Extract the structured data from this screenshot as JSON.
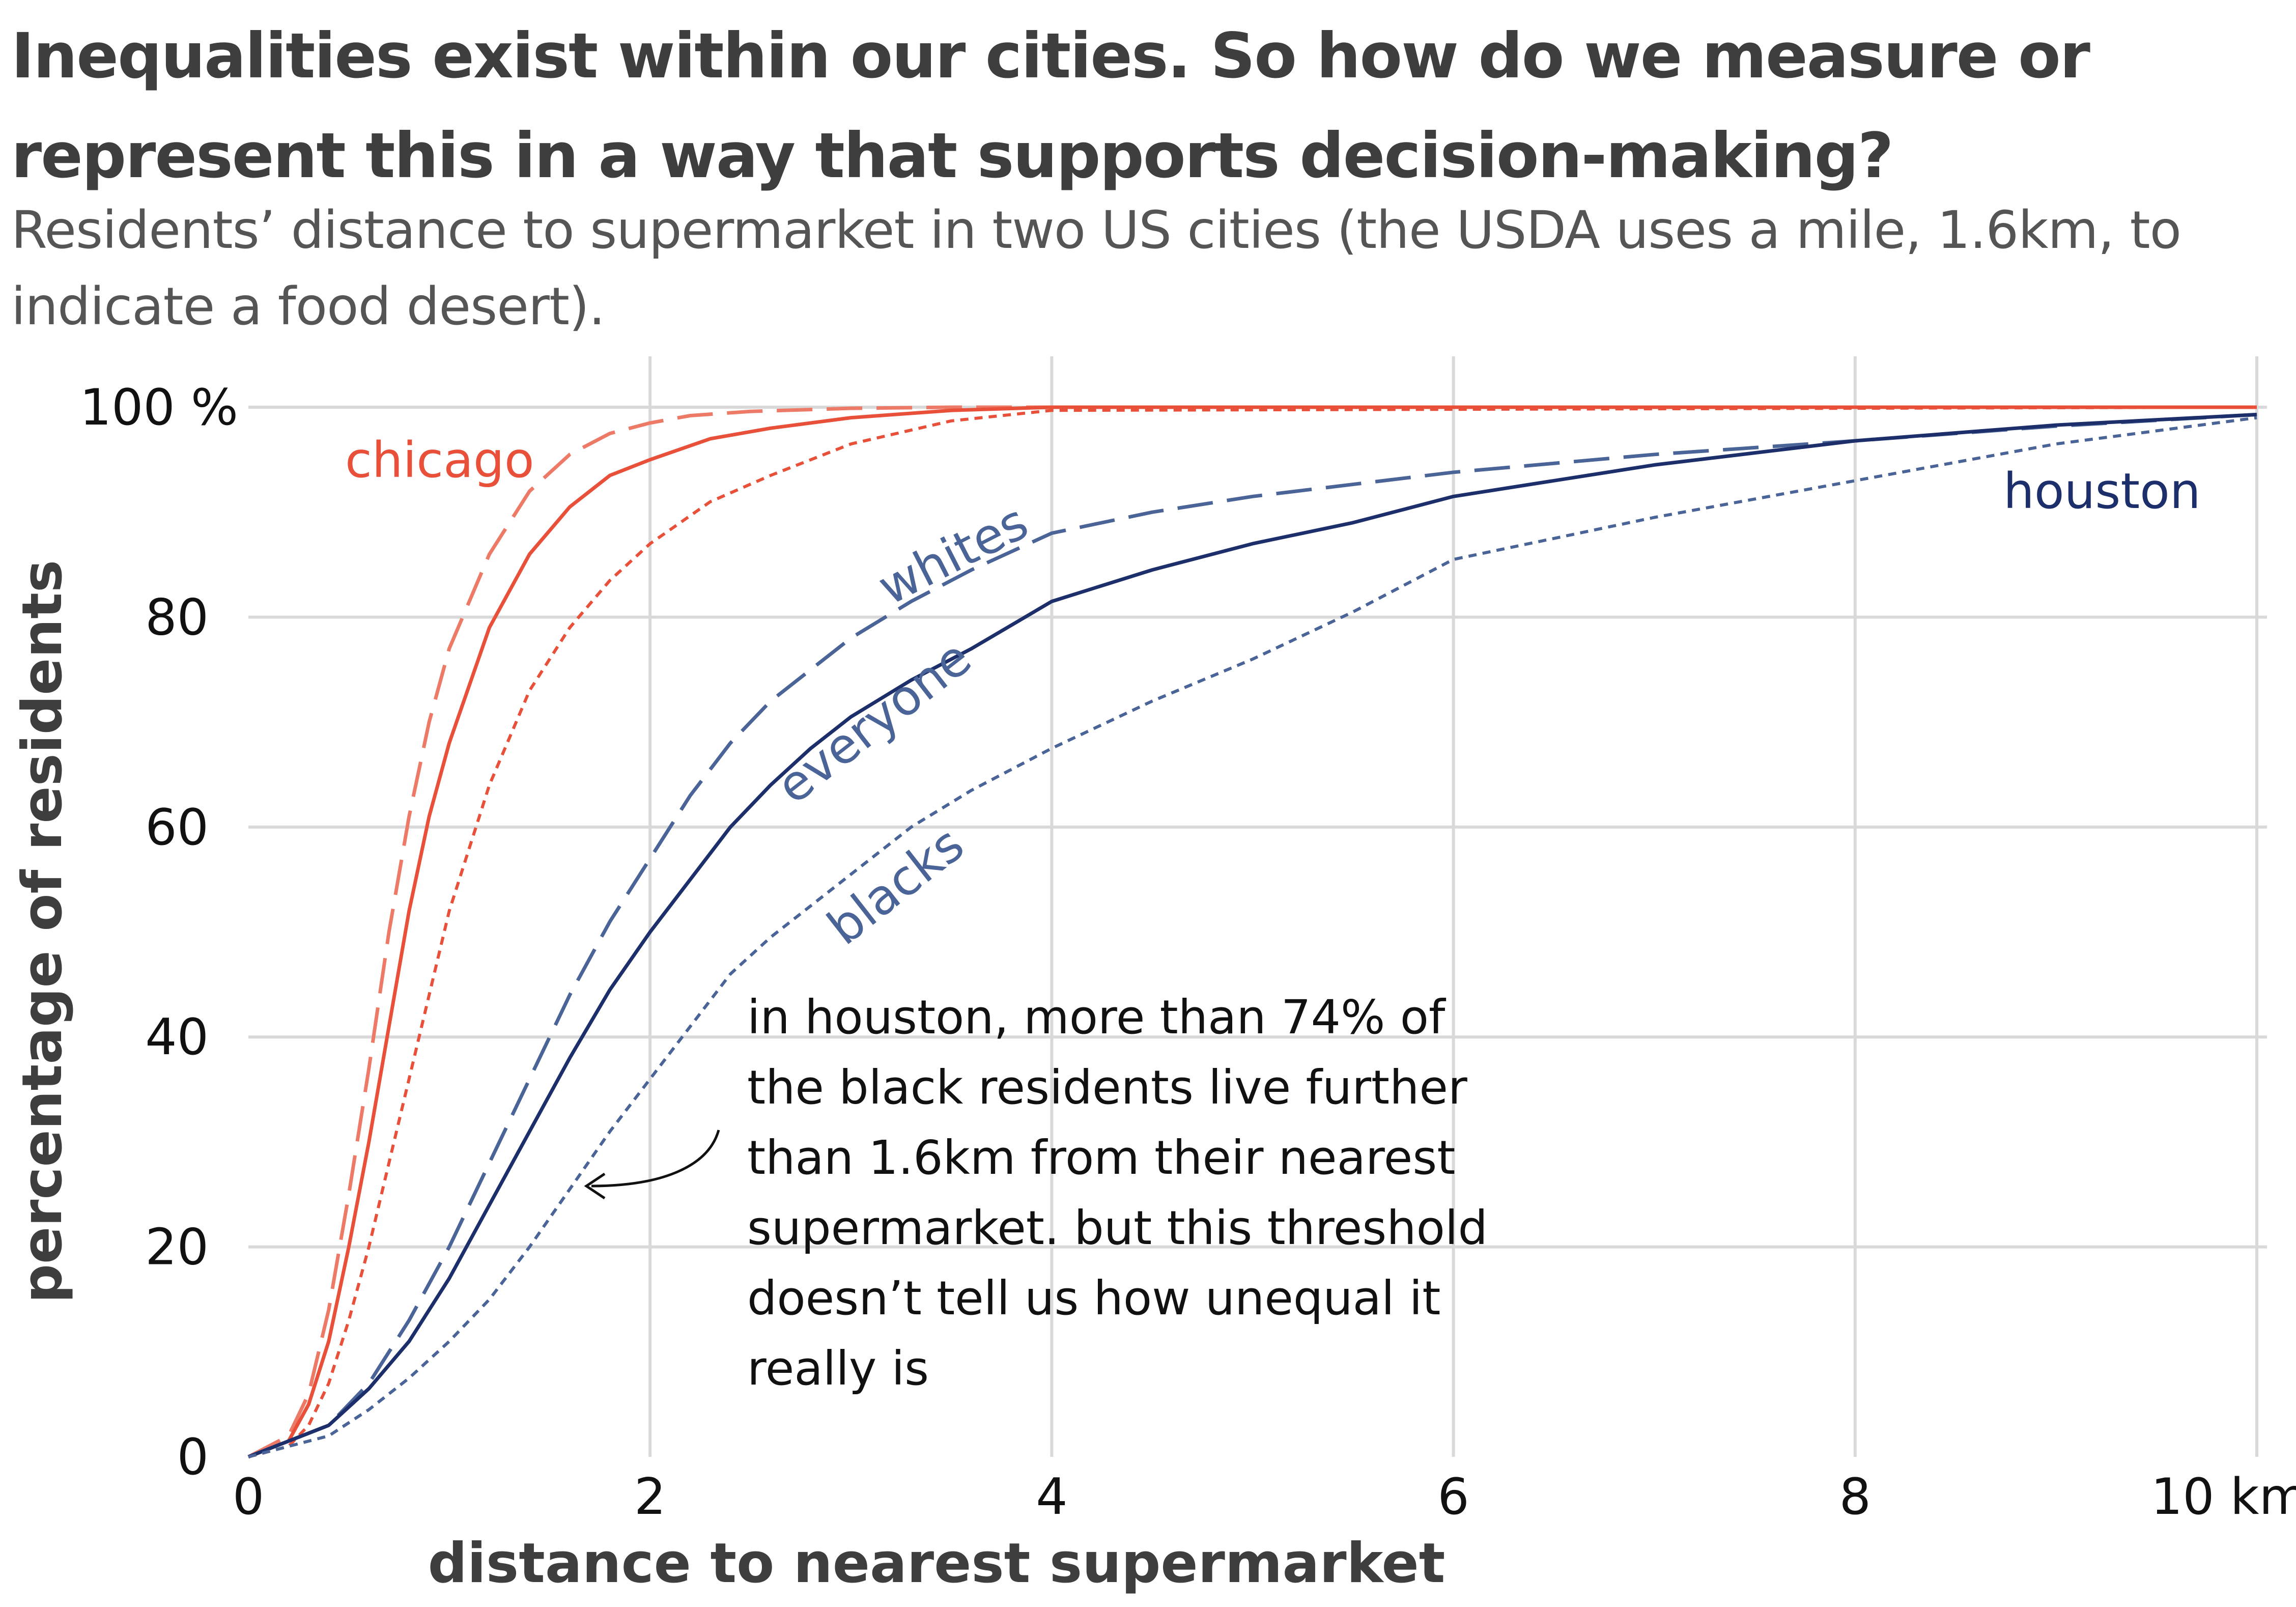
{
  "title": "Inequalities exist within our cities. So how do we measure or represent this in a way that supports decision-making?",
  "subtitle": "Residents’ distance to supermarket in two US cities (the USDA uses a mile, 1.6km, to indicate a food desert).",
  "chart_data": {
    "type": "line",
    "xlabel": "distance to nearest supermarket",
    "ylabel": "percentage of residents",
    "xlim": [
      0,
      10
    ],
    "ylim": [
      0,
      100
    ],
    "x_ticks": [
      "0",
      "2",
      "4",
      "6",
      "8",
      "10 km"
    ],
    "y_ticks": [
      "0",
      "20",
      "40",
      "60",
      "80",
      "100 %"
    ],
    "grid": true,
    "colors": {
      "chicago": "#e8503a",
      "chicago_whites": "#ec7a66",
      "houston": "#1c2f6b",
      "houston_groups": "#4a6497"
    },
    "city_labels": {
      "chicago": "chicago",
      "houston": "houston"
    },
    "group_labels": {
      "whites": "whites",
      "everyone": "everyone",
      "blacks": "blacks"
    },
    "annotation_lines": [
      "in houston, more than 74% of",
      "the black residents live further",
      "than 1.6km from their nearest",
      "supermarket. but this threshold",
      "doesn’t tell us how unequal it",
      "really is"
    ],
    "series": [
      {
        "city": "chicago",
        "group": "whites",
        "style": "dashed",
        "x": [
          0,
          0.2,
          0.3,
          0.4,
          0.5,
          0.6,
          0.7,
          0.8,
          0.9,
          1.0,
          1.2,
          1.4,
          1.6,
          1.8,
          2.0,
          2.2,
          2.5,
          3.0,
          3.5,
          4.0,
          10
        ],
        "y": [
          0,
          2,
          6,
          14,
          25,
          37,
          50,
          61,
          70,
          77,
          86,
          92,
          95.5,
          97.5,
          98.5,
          99.2,
          99.6,
          99.9,
          100,
          100,
          100
        ]
      },
      {
        "city": "chicago",
        "group": "everyone",
        "style": "solid",
        "x": [
          0,
          0.2,
          0.3,
          0.4,
          0.5,
          0.6,
          0.7,
          0.8,
          0.9,
          1.0,
          1.2,
          1.4,
          1.6,
          1.8,
          2.0,
          2.3,
          2.6,
          3.0,
          3.5,
          4.0,
          10
        ],
        "y": [
          0,
          1.5,
          5,
          11,
          20,
          30,
          41,
          52,
          61,
          68,
          79,
          86,
          90.5,
          93.5,
          95,
          97,
          98,
          99,
          99.7,
          100,
          100
        ]
      },
      {
        "city": "chicago",
        "group": "blacks",
        "style": "dotted",
        "x": [
          0,
          0.2,
          0.3,
          0.4,
          0.5,
          0.6,
          0.7,
          0.8,
          1.0,
          1.2,
          1.4,
          1.6,
          1.8,
          2.0,
          2.3,
          2.6,
          3.0,
          3.5,
          4.0,
          10
        ],
        "y": [
          0,
          1,
          3,
          7,
          13,
          20,
          28,
          36,
          52,
          64,
          73,
          79,
          83.5,
          87,
          91,
          93.5,
          96.5,
          98.7,
          99.7,
          100
        ]
      },
      {
        "city": "houston",
        "group": "whites",
        "style": "dashed",
        "x": [
          0,
          0.4,
          0.6,
          0.8,
          1.0,
          1.2,
          1.4,
          1.6,
          1.8,
          2.0,
          2.2,
          2.4,
          2.6,
          2.8,
          3.0,
          3.3,
          3.6,
          4.0,
          4.5,
          5.0,
          6.0,
          7.0,
          8.0,
          9.0,
          10.0
        ],
        "y": [
          0,
          3,
          7,
          13,
          20,
          28,
          36,
          44,
          51,
          57,
          63,
          68,
          72,
          75,
          78,
          81.5,
          84.5,
          88,
          90,
          91.5,
          93.8,
          95.5,
          96.8,
          98.2,
          99.3
        ]
      },
      {
        "city": "houston",
        "group": "everyone",
        "style": "solid",
        "x": [
          0,
          0.4,
          0.6,
          0.8,
          1.0,
          1.2,
          1.4,
          1.6,
          1.8,
          2.0,
          2.2,
          2.4,
          2.6,
          2.8,
          3.0,
          3.3,
          3.6,
          4.0,
          4.5,
          5.0,
          5.5,
          6.0,
          7.0,
          8.0,
          9.0,
          10.0
        ],
        "y": [
          0,
          3,
          6.5,
          11,
          17,
          24,
          31,
          38,
          44.5,
          50,
          55,
          60,
          64,
          67.5,
          70.5,
          74,
          77,
          81.5,
          84.5,
          87,
          89,
          91.5,
          94.5,
          96.8,
          98.3,
          99.3
        ]
      },
      {
        "city": "houston",
        "group": "blacks",
        "style": "dotted",
        "x": [
          0,
          0.4,
          0.6,
          0.8,
          1.0,
          1.2,
          1.4,
          1.6,
          1.8,
          2.0,
          2.2,
          2.4,
          2.6,
          2.8,
          3.0,
          3.3,
          3.6,
          4.0,
          4.5,
          5.0,
          5.5,
          6.0,
          7.0,
          8.0,
          9.0,
          10.0
        ],
        "y": [
          0,
          2,
          4.5,
          7.5,
          11,
          15,
          20,
          25.5,
          31,
          36,
          41,
          46,
          49.5,
          52.5,
          55.5,
          60,
          63.5,
          67.5,
          72,
          76,
          80.5,
          85.5,
          89.5,
          93,
          96.5,
          99
        ]
      }
    ]
  }
}
